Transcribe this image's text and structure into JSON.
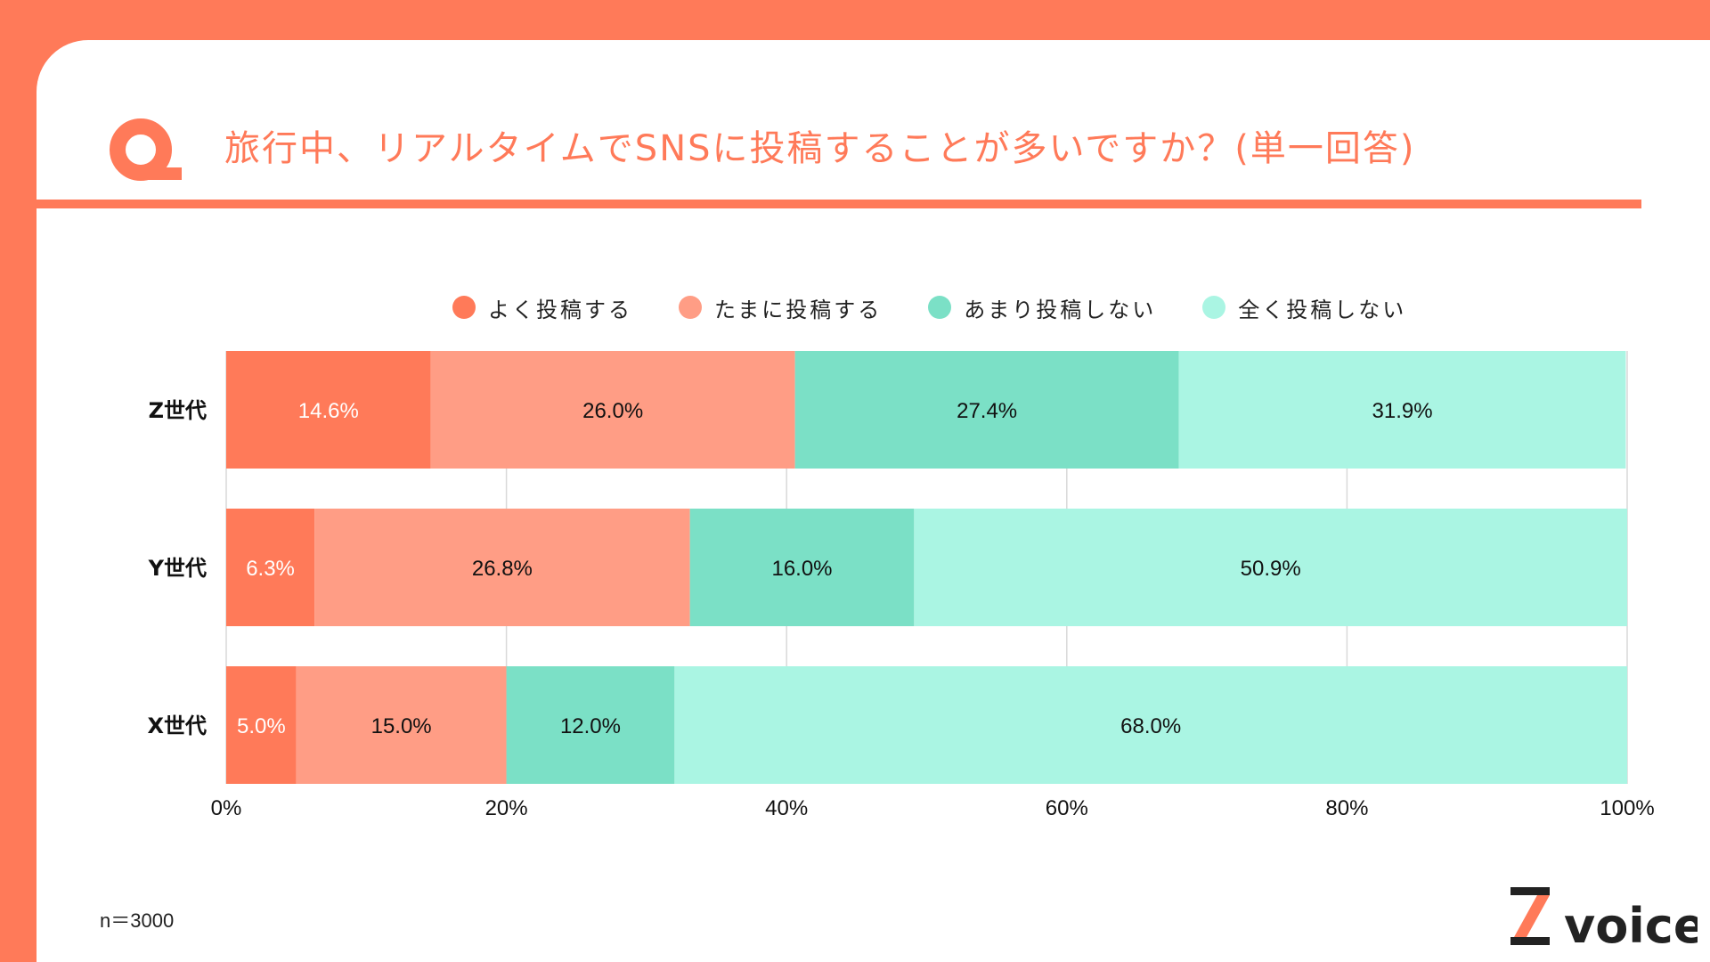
{
  "header": {
    "title": "旅行中、リアルタイムでSNSに投稿することが多いですか？(単一回答)"
  },
  "footnote": "n＝3000",
  "logo": {
    "text": "voice",
    "mark": "Z"
  },
  "colors": {
    "brand": "#FF7A59",
    "grid": "#D9D9D9"
  },
  "chart_data": {
    "type": "bar",
    "orientation": "horizontal",
    "stacked": true,
    "percent": true,
    "title": "旅行中、リアルタイムでSNSに投稿することが多いですか？(単一回答)",
    "categories": [
      "Z世代",
      "Y世代",
      "X世代"
    ],
    "series": [
      {
        "name": "よく投稿する",
        "color": "#FF7A59",
        "label_color": "#FFFFFF",
        "values": [
          14.6,
          6.3,
          5.0
        ]
      },
      {
        "name": "たまに投稿する",
        "color": "#FF9D85",
        "label_color": "#111111",
        "values": [
          26.0,
          26.8,
          15.0
        ]
      },
      {
        "name": "あまり投稿しない",
        "color": "#7BE0C6",
        "label_color": "#111111",
        "values": [
          27.4,
          16.0,
          12.0
        ]
      },
      {
        "name": "全く投稿しない",
        "color": "#AAF5E3",
        "label_color": "#111111",
        "values": [
          31.9,
          50.9,
          68.0
        ]
      }
    ],
    "xlim": [
      0,
      100
    ],
    "xticks": [
      "0%",
      "20%",
      "40%",
      "60%",
      "80%",
      "100%"
    ],
    "grid": true,
    "legend_position": "top"
  }
}
